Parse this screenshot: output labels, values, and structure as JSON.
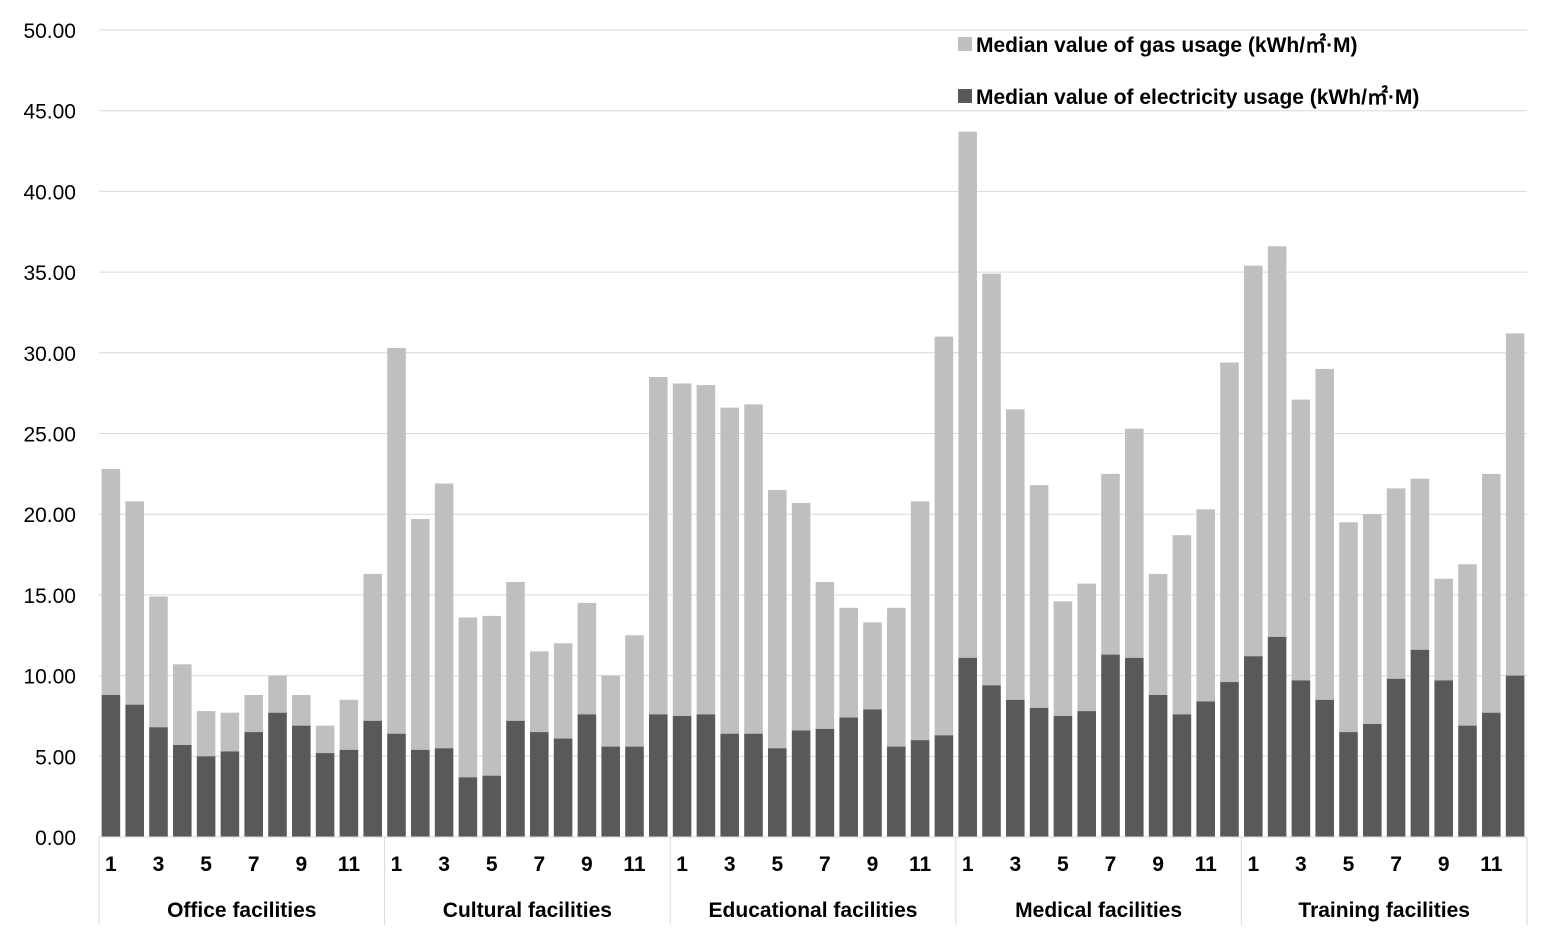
{
  "chart_data": {
    "type": "bar",
    "stacked": true,
    "groups": [
      "Office facilities",
      "Cultural facilities",
      "Educational facilities",
      "Medical  facilities",
      "Training facilities"
    ],
    "months": [
      1,
      2,
      3,
      4,
      5,
      6,
      7,
      8,
      9,
      10,
      11,
      12
    ],
    "x_tick_labels": [
      "1",
      "",
      "3",
      "",
      "5",
      "",
      "7",
      "",
      "9",
      "",
      "11",
      ""
    ],
    "ylim": [
      0,
      50
    ],
    "y_ticks": [
      "0.00",
      "5.00",
      "10.00",
      "15.00",
      "20.00",
      "25.00",
      "30.00",
      "35.00",
      "40.00",
      "45.00",
      "50.00"
    ],
    "grid": true,
    "legend_position": "top-right",
    "series": [
      {
        "name": "Median value of gas usage (kWh/㎡·M)",
        "role": "total",
        "color": "#bfbfbf",
        "values": [
          [
            22.8,
            20.8,
            14.9,
            10.7,
            7.8,
            7.7,
            8.8,
            10.0,
            8.8,
            6.9,
            8.5,
            16.3
          ],
          [
            30.3,
            19.7,
            21.9,
            13.6,
            13.7,
            15.8,
            11.5,
            12.0,
            14.5,
            10.0,
            12.5,
            28.5
          ],
          [
            28.1,
            28.0,
            26.6,
            26.8,
            21.5,
            20.7,
            15.8,
            14.2,
            13.3,
            14.2,
            20.8,
            31.0
          ],
          [
            43.7,
            34.9,
            26.5,
            21.8,
            14.6,
            15.7,
            22.5,
            25.3,
            16.3,
            18.7,
            20.3,
            29.4
          ],
          [
            35.4,
            36.6,
            27.1,
            29.0,
            19.5,
            20.0,
            21.6,
            22.2,
            16.0,
            16.9,
            22.5,
            31.2
          ]
        ]
      },
      {
        "name": "Median value of electricity usage (kWh/㎡·M)",
        "role": "base",
        "color": "#595959",
        "values": [
          [
            8.8,
            8.2,
            6.8,
            5.7,
            5.0,
            5.3,
            6.5,
            7.7,
            6.9,
            5.2,
            5.4,
            7.2
          ],
          [
            6.4,
            5.4,
            5.5,
            3.7,
            3.8,
            7.2,
            6.5,
            6.1,
            7.6,
            5.6,
            5.6,
            7.6
          ],
          [
            7.5,
            7.6,
            6.4,
            6.4,
            5.5,
            6.6,
            6.7,
            7.4,
            7.9,
            5.6,
            6.0,
            6.3
          ],
          [
            11.1,
            9.4,
            8.5,
            8.0,
            7.5,
            7.8,
            11.3,
            11.1,
            8.8,
            7.6,
            8.4,
            9.6
          ],
          [
            11.2,
            12.4,
            9.7,
            8.5,
            6.5,
            7.0,
            9.8,
            11.6,
            9.7,
            6.9,
            7.7,
            10.0
          ]
        ]
      }
    ]
  }
}
